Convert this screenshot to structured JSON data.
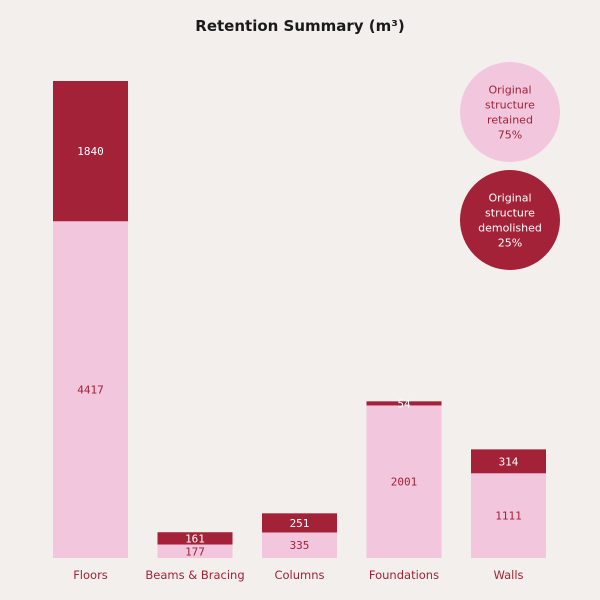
{
  "chart_data": {
    "type": "bar",
    "stacked": true,
    "title": "Retention Summary (m³)",
    "categories": [
      "Floors",
      "Beams & Bracing",
      "Columns",
      "Foundations",
      "Walls"
    ],
    "series": [
      {
        "values": [
          4417,
          177,
          335,
          2001,
          1111
        ],
        "color": "#f2c6dc"
      },
      {
        "values": [
          1840,
          161,
          251,
          54,
          314
        ],
        "color": "#a32238"
      }
    ],
    "ylim": [
      0,
      6257
    ],
    "grid": false,
    "legend": {
      "placement": "top-right",
      "items": [
        {
          "lines": [
            "Original",
            "structure",
            "retained",
            "75%"
          ],
          "color": "#f2c6dc",
          "text_color": "#a32238"
        },
        {
          "lines": [
            "Original",
            "structure",
            "demolished",
            "25%"
          ],
          "color": "#a32238",
          "text_color": "#ffffff"
        }
      ]
    }
  },
  "colors": {
    "background": "#f3efec",
    "category_text": "#a32238",
    "retained_text": "#a32238",
    "demolished_text": "#ffffff"
  }
}
